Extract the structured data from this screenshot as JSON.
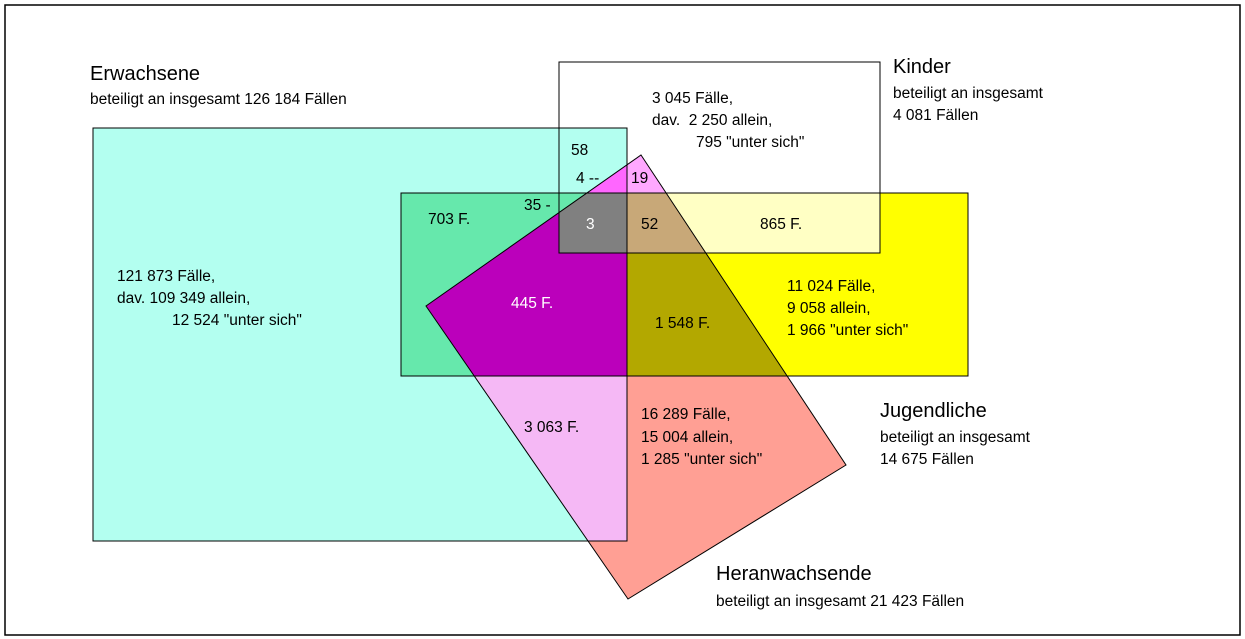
{
  "sets": [
    {
      "name": "Erwachsene",
      "description": [
        "beteiligt an insgesamt 126 184 Fällen"
      ]
    },
    {
      "name": "Kinder",
      "description": [
        "beteiligt an insgesamt",
        "4 081 Fällen"
      ]
    },
    {
      "name": "Jugendliche",
      "description": [
        "beteiligt an insgesamt",
        "14 675 Fällen"
      ]
    },
    {
      "name": "Heranwachsende",
      "description": [
        "beteiligt an insgesamt 21 423 Fällen"
      ]
    }
  ],
  "regions": [
    {
      "lines": [
        "121 873 Fälle,",
        "dav. 109 349 allein,",
        "12 524 \"unter sich\""
      ]
    },
    {
      "lines": [
        "3 045 Fälle,",
        "dav.  2 250 allein,",
        "795 \"unter sich\""
      ]
    },
    {
      "lines": [
        "11 024 Fälle,",
        "9 058 allein,",
        "1 966 \"unter sich\""
      ]
    },
    {
      "lines": [
        "16 289 Fälle,",
        "15 004 allein,",
        "1 285 \"unter sich\""
      ]
    },
    {
      "lines": [
        "58"
      ]
    },
    {
      "lines": [
        "4 --"
      ]
    },
    {
      "lines": [
        "19"
      ]
    },
    {
      "lines": [
        "35 -"
      ]
    },
    {
      "lines": [
        "3"
      ]
    },
    {
      "lines": [
        "52"
      ]
    },
    {
      "lines": [
        "865 F."
      ]
    },
    {
      "lines": [
        "703 F."
      ]
    },
    {
      "lines": [
        "445 F."
      ]
    },
    {
      "lines": [
        "1 548 F."
      ]
    },
    {
      "lines": [
        "3 063 F."
      ]
    }
  ]
}
